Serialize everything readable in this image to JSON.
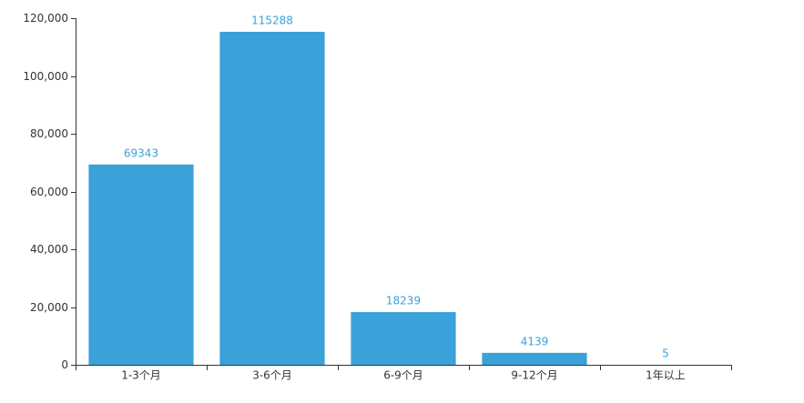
{
  "chart_data": {
    "type": "bar",
    "categories": [
      "1-3个月",
      "3-6个月",
      "6-9个月",
      "9-12个月",
      "1年以上"
    ],
    "values": [
      69343,
      115288,
      18239,
      4139,
      5
    ],
    "color": "#3aa1d9",
    "ylim": [
      0,
      120000
    ],
    "yticks": [
      0,
      {
        "value": 20000,
        "label": "20,000"
      },
      {
        "value": 40000,
        "label": "40,000"
      },
      {
        "value": 60000,
        "label": "60,000"
      },
      {
        "value": 80000,
        "label": "80,000"
      },
      {
        "value": 100000,
        "label": "100,000"
      },
      {
        "value": 120000,
        "label": "120,000"
      }
    ],
    "grid": false
  }
}
